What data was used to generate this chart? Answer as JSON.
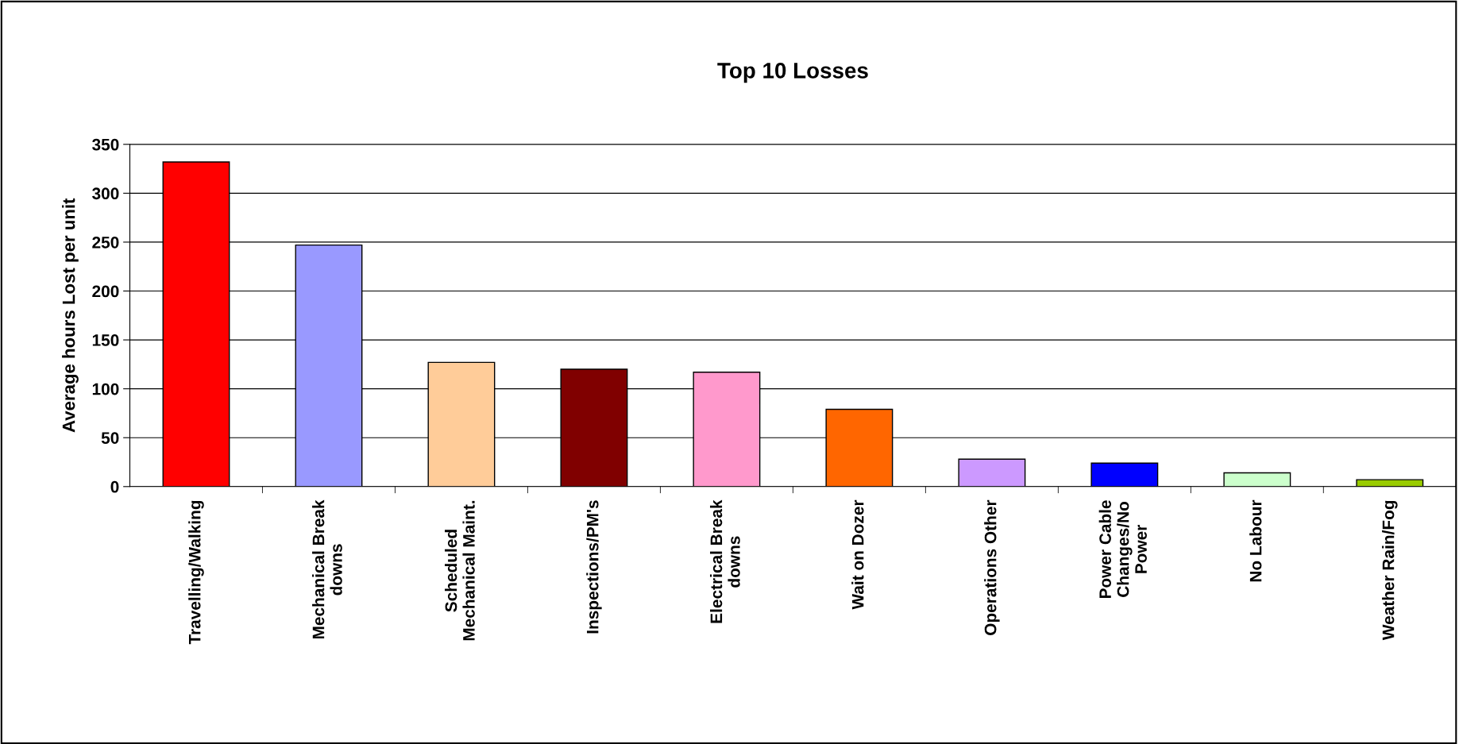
{
  "chart_data": {
    "type": "bar",
    "title": "Top 10 Losses",
    "ylabel": "Average hours Lost per unit",
    "categories": [
      "Travelling/Walking",
      "Mechanical Break\ndowns",
      "Scheduled\nMechanical Maint.",
      "Inspections/PM's",
      "Electrical Break\ndowns",
      "Wait on Dozer",
      "Operations Other",
      "Power Cable\nChanges/No\nPower",
      "No Labour",
      "Weather Rain/Fog"
    ],
    "values": [
      332,
      247,
      127,
      120,
      117,
      79,
      28,
      24,
      14,
      7
    ],
    "colors": [
      "#ff0000",
      "#9999ff",
      "#ffcc99",
      "#800000",
      "#ff99cc",
      "#ff6600",
      "#cc99ff",
      "#0000ff",
      "#ccffcc",
      "#99cc00"
    ],
    "ylim": [
      0,
      350
    ],
    "yticks": [
      0,
      50,
      100,
      150,
      200,
      250,
      300,
      350
    ],
    "grid": "y",
    "legend": false
  }
}
